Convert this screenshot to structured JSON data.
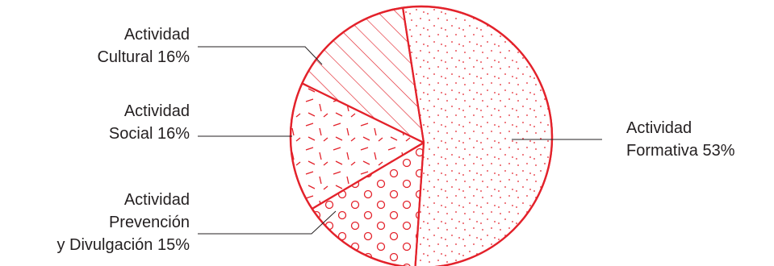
{
  "chart_data": {
    "type": "pie",
    "colors": {
      "stroke": "#e3222b",
      "text": "#231f20",
      "leader": "#231f20"
    },
    "slices": [
      {
        "category_line1": "Actividad",
        "category_line2": "Formativa",
        "category_line3": "",
        "value": 53,
        "value_label": "53%",
        "pattern": "dots"
      },
      {
        "category_line1": "Actividad",
        "category_line2": "Prevención",
        "category_line3": "y Divulgación",
        "value": 15,
        "value_label": "15%",
        "pattern": "circles"
      },
      {
        "category_line1": "Actividad",
        "category_line2": "Social",
        "category_line3": "",
        "value": 16,
        "value_label": "16%",
        "pattern": "dashes"
      },
      {
        "category_line1": "Actividad",
        "category_line2": "Cultural",
        "category_line3": "",
        "value": 16,
        "value_label": "16%",
        "pattern": "diagonal-hatch"
      }
    ]
  }
}
